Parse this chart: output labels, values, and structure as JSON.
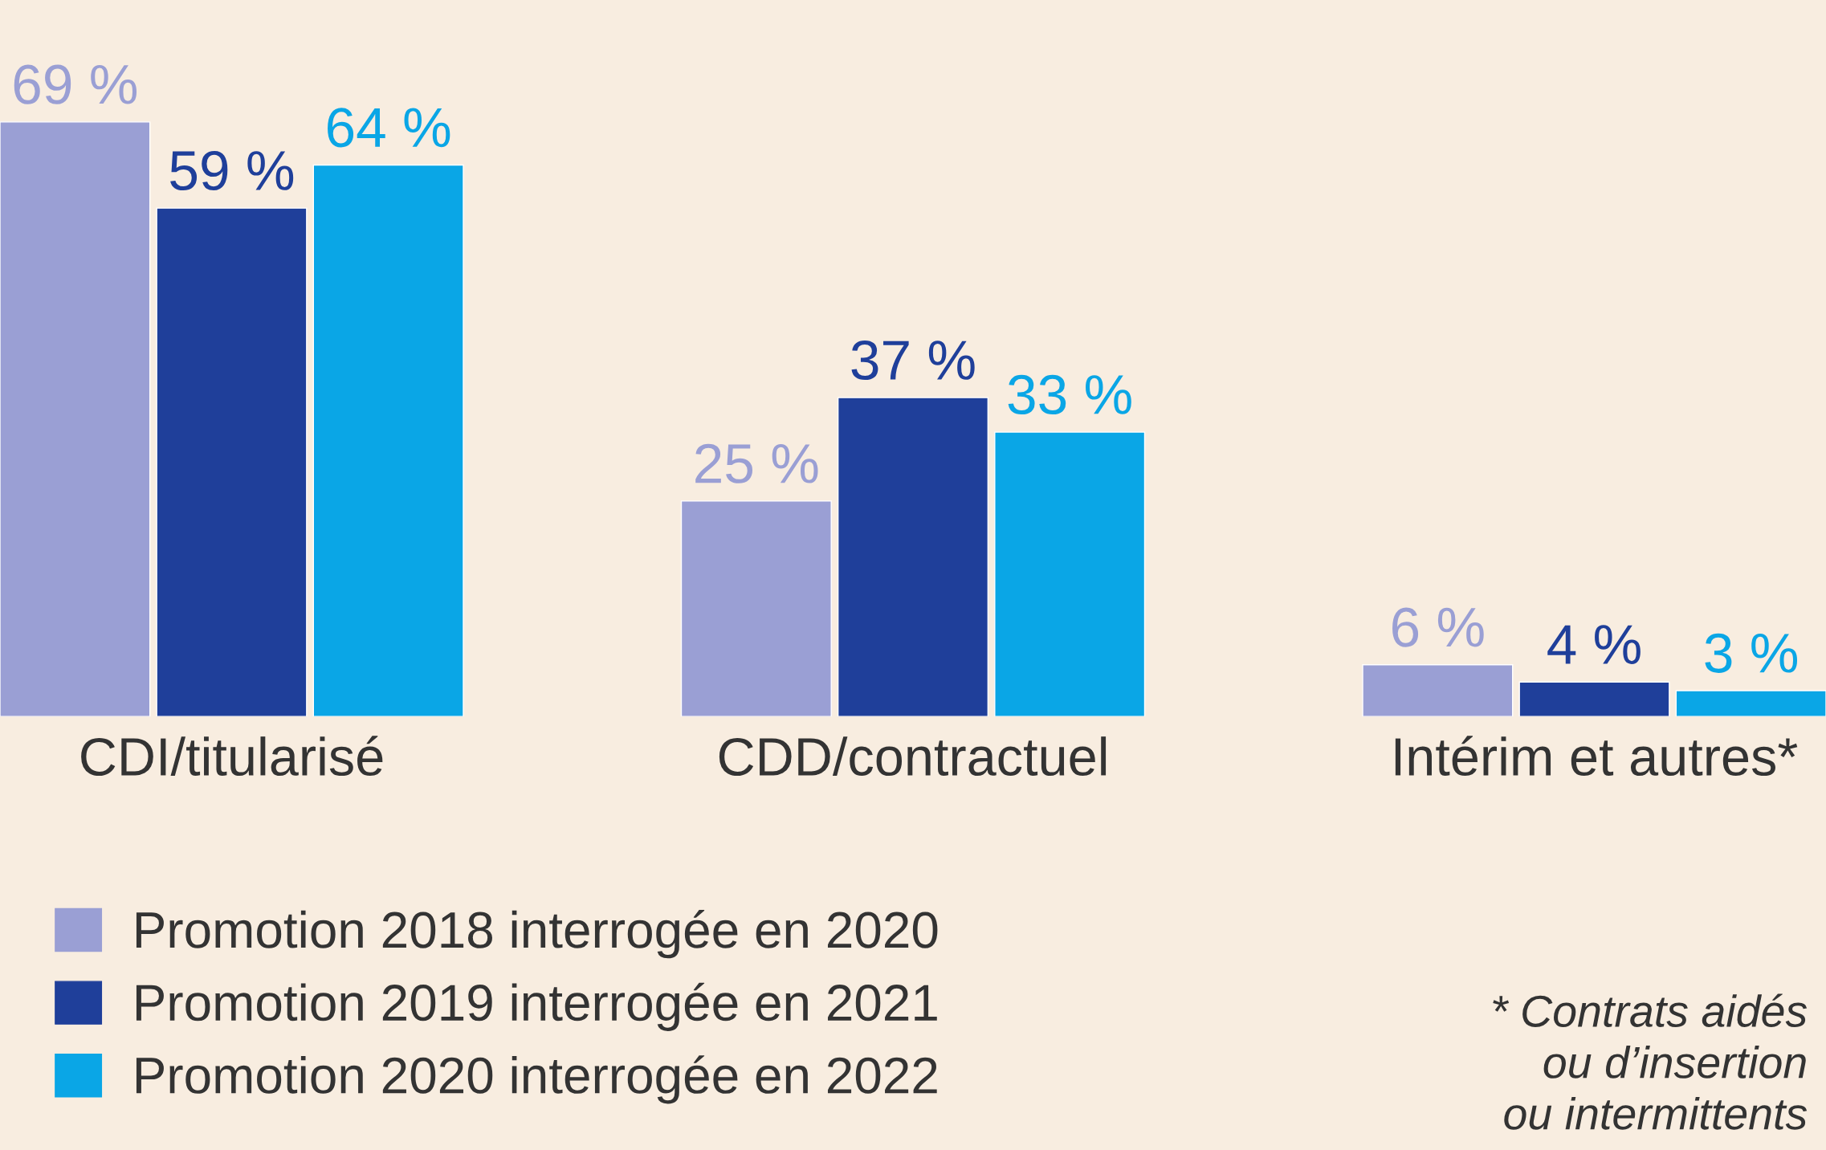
{
  "chart_data": {
    "type": "bar",
    "categories": [
      "CDI/titularisé",
      "CDD/contractuel",
      "Intérim et autres*"
    ],
    "series": [
      {
        "name": "Promotion 2018 interrogée en 2020",
        "color": "#9a9fd4",
        "values": [
          69,
          25,
          6
        ],
        "value_labels": [
          "69 %",
          "25 %",
          "6 %"
        ]
      },
      {
        "name": "Promotion 2019 interrogée en 2021",
        "color": "#1f3f9a",
        "values": [
          59,
          37,
          4
        ],
        "value_labels": [
          "59 %",
          "37 %",
          "4 %"
        ]
      },
      {
        "name": "Promotion 2020 interrogée en 2022",
        "color": "#0aa6e6",
        "values": [
          64,
          33,
          3
        ],
        "value_labels": [
          "64 %",
          "33 %",
          "3 %"
        ]
      }
    ],
    "legend": "bottom left",
    "grid": false,
    "annotations": [
      "* Contrats aidés\nou d’insertion\nou intermittents"
    ]
  }
}
